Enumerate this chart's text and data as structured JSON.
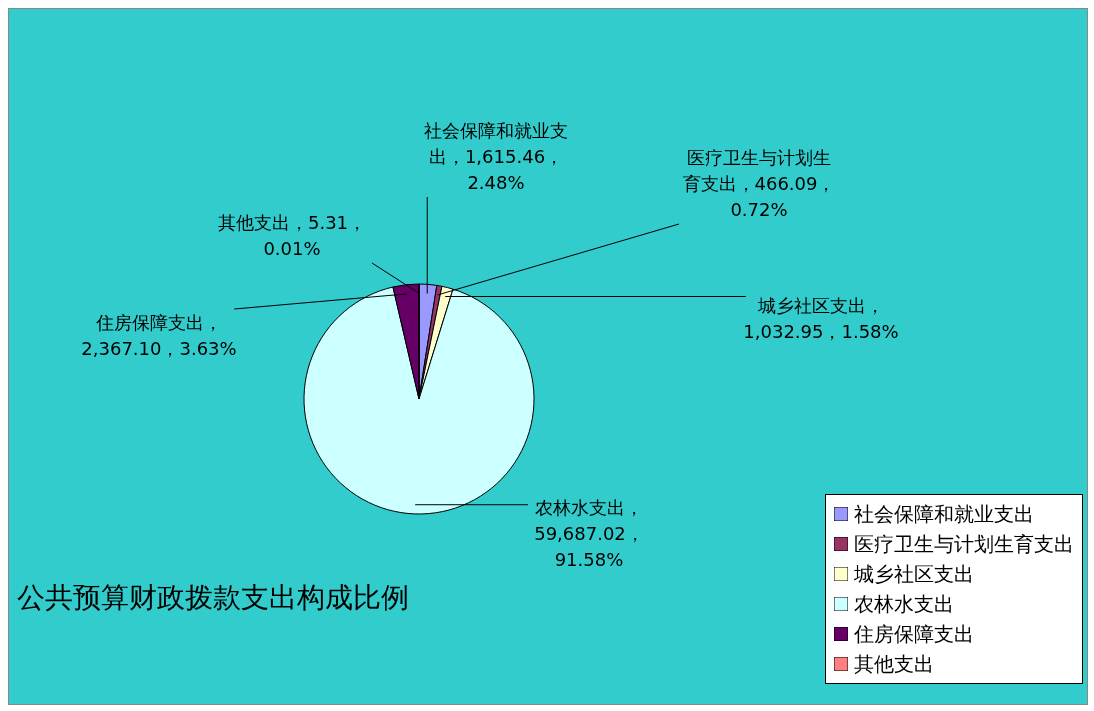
{
  "chart_data": {
    "type": "pie",
    "title": "公共预算财政拨款支出构成比例",
    "categories": [
      "社会保障和就业支出",
      "医疗卫生与计划生育支出",
      "城乡社区支出",
      "农林水支出",
      "住房保障支出",
      "其他支出"
    ],
    "values": [
      1615.46,
      466.09,
      1032.95,
      59687.02,
      2367.1,
      5.31
    ],
    "colors": [
      "#9999ff",
      "#993366",
      "#ffffcc",
      "#ccffff",
      "#660066",
      "#ff8080"
    ],
    "value_labels": [
      "社会保障和就业支出，1,615.46，2.48%",
      "医疗卫生与计划生育支出，466.09，0.72%",
      "城乡社区支出，1,032.95，1.58%",
      "农林水支出，59,687.02，91.58%",
      "住房保障支出，2,367.10，3.63%",
      "其他支出，5.31，0.01%"
    ],
    "legend": "bottom right"
  }
}
